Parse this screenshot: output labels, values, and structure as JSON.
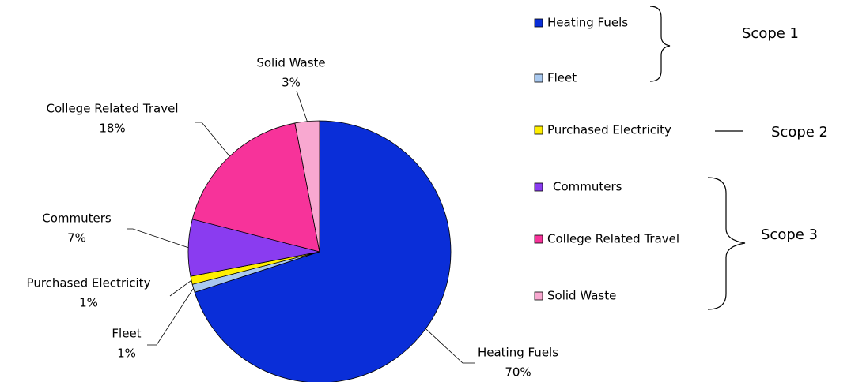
{
  "chart_data": {
    "type": "pie",
    "categories": [
      "Heating Fuels",
      "Fleet",
      "Purchased Electricity",
      "Commuters",
      "College Related Travel",
      "Solid Waste"
    ],
    "values": [
      70,
      1,
      1,
      7,
      18,
      3
    ],
    "value_labels": [
      "70%",
      "1%",
      "1%",
      "7%",
      "18%",
      "3%"
    ],
    "colors": [
      "#0a2ed8",
      "#a9c9ef",
      "#ffee00",
      "#8a3cf0",
      "#f7339a",
      "#f8a8d0"
    ],
    "scope_labels": [
      "Scope 1",
      "Scope 2",
      "Scope 3"
    ]
  }
}
